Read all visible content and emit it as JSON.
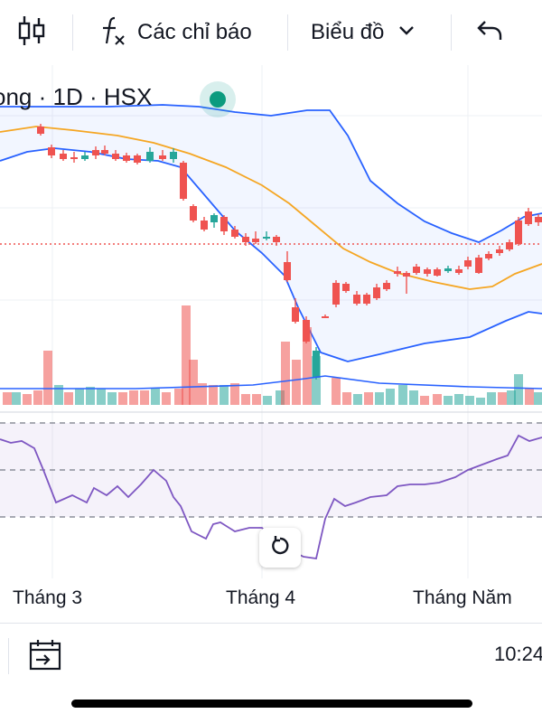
{
  "toolbar": {
    "candles_icon": "candlestick-icon",
    "indicators_label": "Các chỉ báo",
    "chart_type_label": "Biểu đồ",
    "undo_icon": "undo-icon"
  },
  "chart": {
    "symbol_label": "ong · 1D · HSX",
    "status_color": "#0b9b7f",
    "up_color": "#26a69a",
    "down_color": "#ef5350",
    "band_color": "#2962ff",
    "basis_color": "#f5a623",
    "rsi_color": "#7e57c2"
  },
  "xaxis": {
    "labels": [
      "Tháng 3",
      "Tháng 4",
      "Tháng Năm"
    ]
  },
  "bottom": {
    "time": "10:24"
  }
}
